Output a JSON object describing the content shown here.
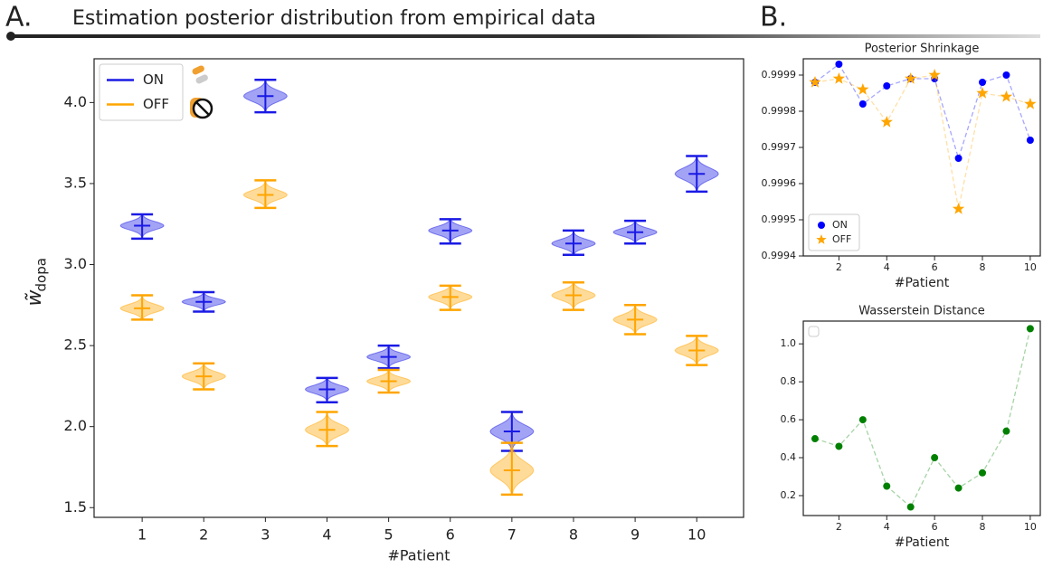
{
  "figure": {
    "panel_a_label": "A.",
    "panel_a_title": "Estimation posterior distribution from empirical data",
    "panel_b_label": "B."
  },
  "chart_data": [
    {
      "type": "violin",
      "xlabel": "#Patient",
      "ylabel": {
        "symbol": "w̃",
        "subscript": "dopa"
      },
      "x": [
        1,
        2,
        3,
        4,
        5,
        6,
        7,
        8,
        9,
        10
      ],
      "xlim": [
        0.22,
        10.76
      ],
      "xticks": [
        1,
        2,
        3,
        4,
        5,
        6,
        7,
        8,
        9,
        10
      ],
      "ylim": [
        1.44,
        4.27
      ],
      "yticks": [
        {
          "value": 1.5,
          "label": "1.5"
        },
        {
          "value": 2,
          "label": "2.0"
        },
        {
          "value": 2.5,
          "label": "2.5"
        },
        {
          "value": 3,
          "label": "3.0"
        },
        {
          "value": 3.5,
          "label": "3.5"
        },
        {
          "value": 4,
          "label": "4.0"
        }
      ],
      "legend": "upper left",
      "series": [
        {
          "name": "ON",
          "color": "#1a1ae6",
          "values": [
            3.24,
            2.77,
            4.04,
            2.23,
            2.43,
            3.21,
            1.97,
            3.13,
            3.2,
            3.56
          ],
          "min": [
            3.16,
            2.71,
            3.94,
            2.15,
            2.36,
            3.13,
            1.85,
            3.06,
            3.13,
            3.45
          ],
          "max": [
            3.31,
            2.83,
            4.14,
            2.3,
            2.5,
            3.28,
            2.09,
            3.21,
            3.27,
            3.67
          ]
        },
        {
          "name": "OFF",
          "color": "#ffa500",
          "values": [
            2.73,
            2.31,
            3.43,
            1.98,
            2.28,
            2.8,
            1.73,
            2.81,
            2.66,
            2.47
          ],
          "min": [
            2.66,
            2.23,
            3.35,
            1.88,
            2.21,
            2.72,
            1.58,
            2.72,
            2.57,
            2.38
          ],
          "max": [
            2.81,
            2.39,
            3.52,
            2.09,
            2.35,
            2.87,
            1.9,
            2.89,
            2.75,
            2.56
          ]
        }
      ]
    },
    {
      "type": "line",
      "title": "Posterior Shrinkage",
      "xlabel": "#Patient",
      "x": [
        1,
        2,
        3,
        4,
        5,
        6,
        7,
        8,
        9,
        10
      ],
      "xlim": [
        0.51,
        10.42
      ],
      "xticks": [
        2,
        4,
        6,
        8,
        10
      ],
      "ylim": [
        0.9994,
        0.999945
      ],
      "yticks": [
        0.9994,
        0.9995,
        0.9996,
        0.9997,
        0.9998,
        0.9999
      ],
      "legend": "lower left",
      "linestyle": "dashed",
      "series": [
        {
          "name": "ON",
          "color": "#0000ff",
          "marker": "circle",
          "values": [
            0.99988,
            0.99993,
            0.99982,
            0.99987,
            0.99989,
            0.99989,
            0.99967,
            0.99988,
            0.9999,
            0.99972
          ]
        },
        {
          "name": "OFF",
          "color": "#ffa500",
          "marker": "star",
          "values": [
            0.99988,
            0.99989,
            0.99986,
            0.99977,
            0.99989,
            0.9999,
            0.99953,
            0.99985,
            0.99984,
            0.99982
          ]
        }
      ]
    },
    {
      "type": "line",
      "title": "Wasserstein Distance",
      "xlabel": "#Patient",
      "x": [
        1,
        2,
        3,
        4,
        5,
        6,
        7,
        8,
        9,
        10
      ],
      "xlim": [
        0.51,
        10.42
      ],
      "xticks": [
        2,
        4,
        6,
        8,
        10
      ],
      "ylim": [
        0.095,
        1.12
      ],
      "yticks": [
        0.2,
        0.4,
        0.6,
        0.8,
        {
          "value": 1,
          "label": "1.0"
        }
      ],
      "legend": "upper left",
      "linestyle": "dashed",
      "series": [
        {
          "color": "#008000",
          "marker": "circle",
          "values": [
            0.5,
            0.46,
            0.6,
            0.25,
            0.14,
            0.4,
            0.24,
            0.32,
            0.54,
            1.08
          ]
        }
      ]
    }
  ]
}
